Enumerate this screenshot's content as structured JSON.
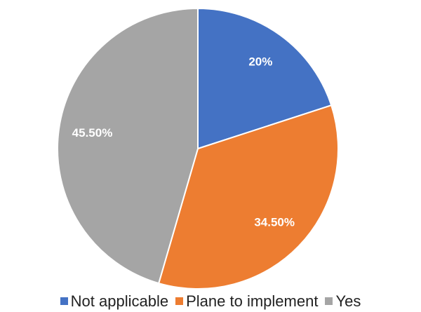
{
  "chart_data": {
    "type": "pie",
    "categories": [
      "Not applicable",
      "Plane to implement",
      "Yes"
    ],
    "values": [
      20,
      34.5,
      45.5
    ],
    "value_labels": [
      "20%",
      "34.50%",
      "45.50%"
    ],
    "colors": [
      "#4472c4",
      "#ed7d31",
      "#a5a5a5"
    ],
    "legend": "bottom"
  }
}
